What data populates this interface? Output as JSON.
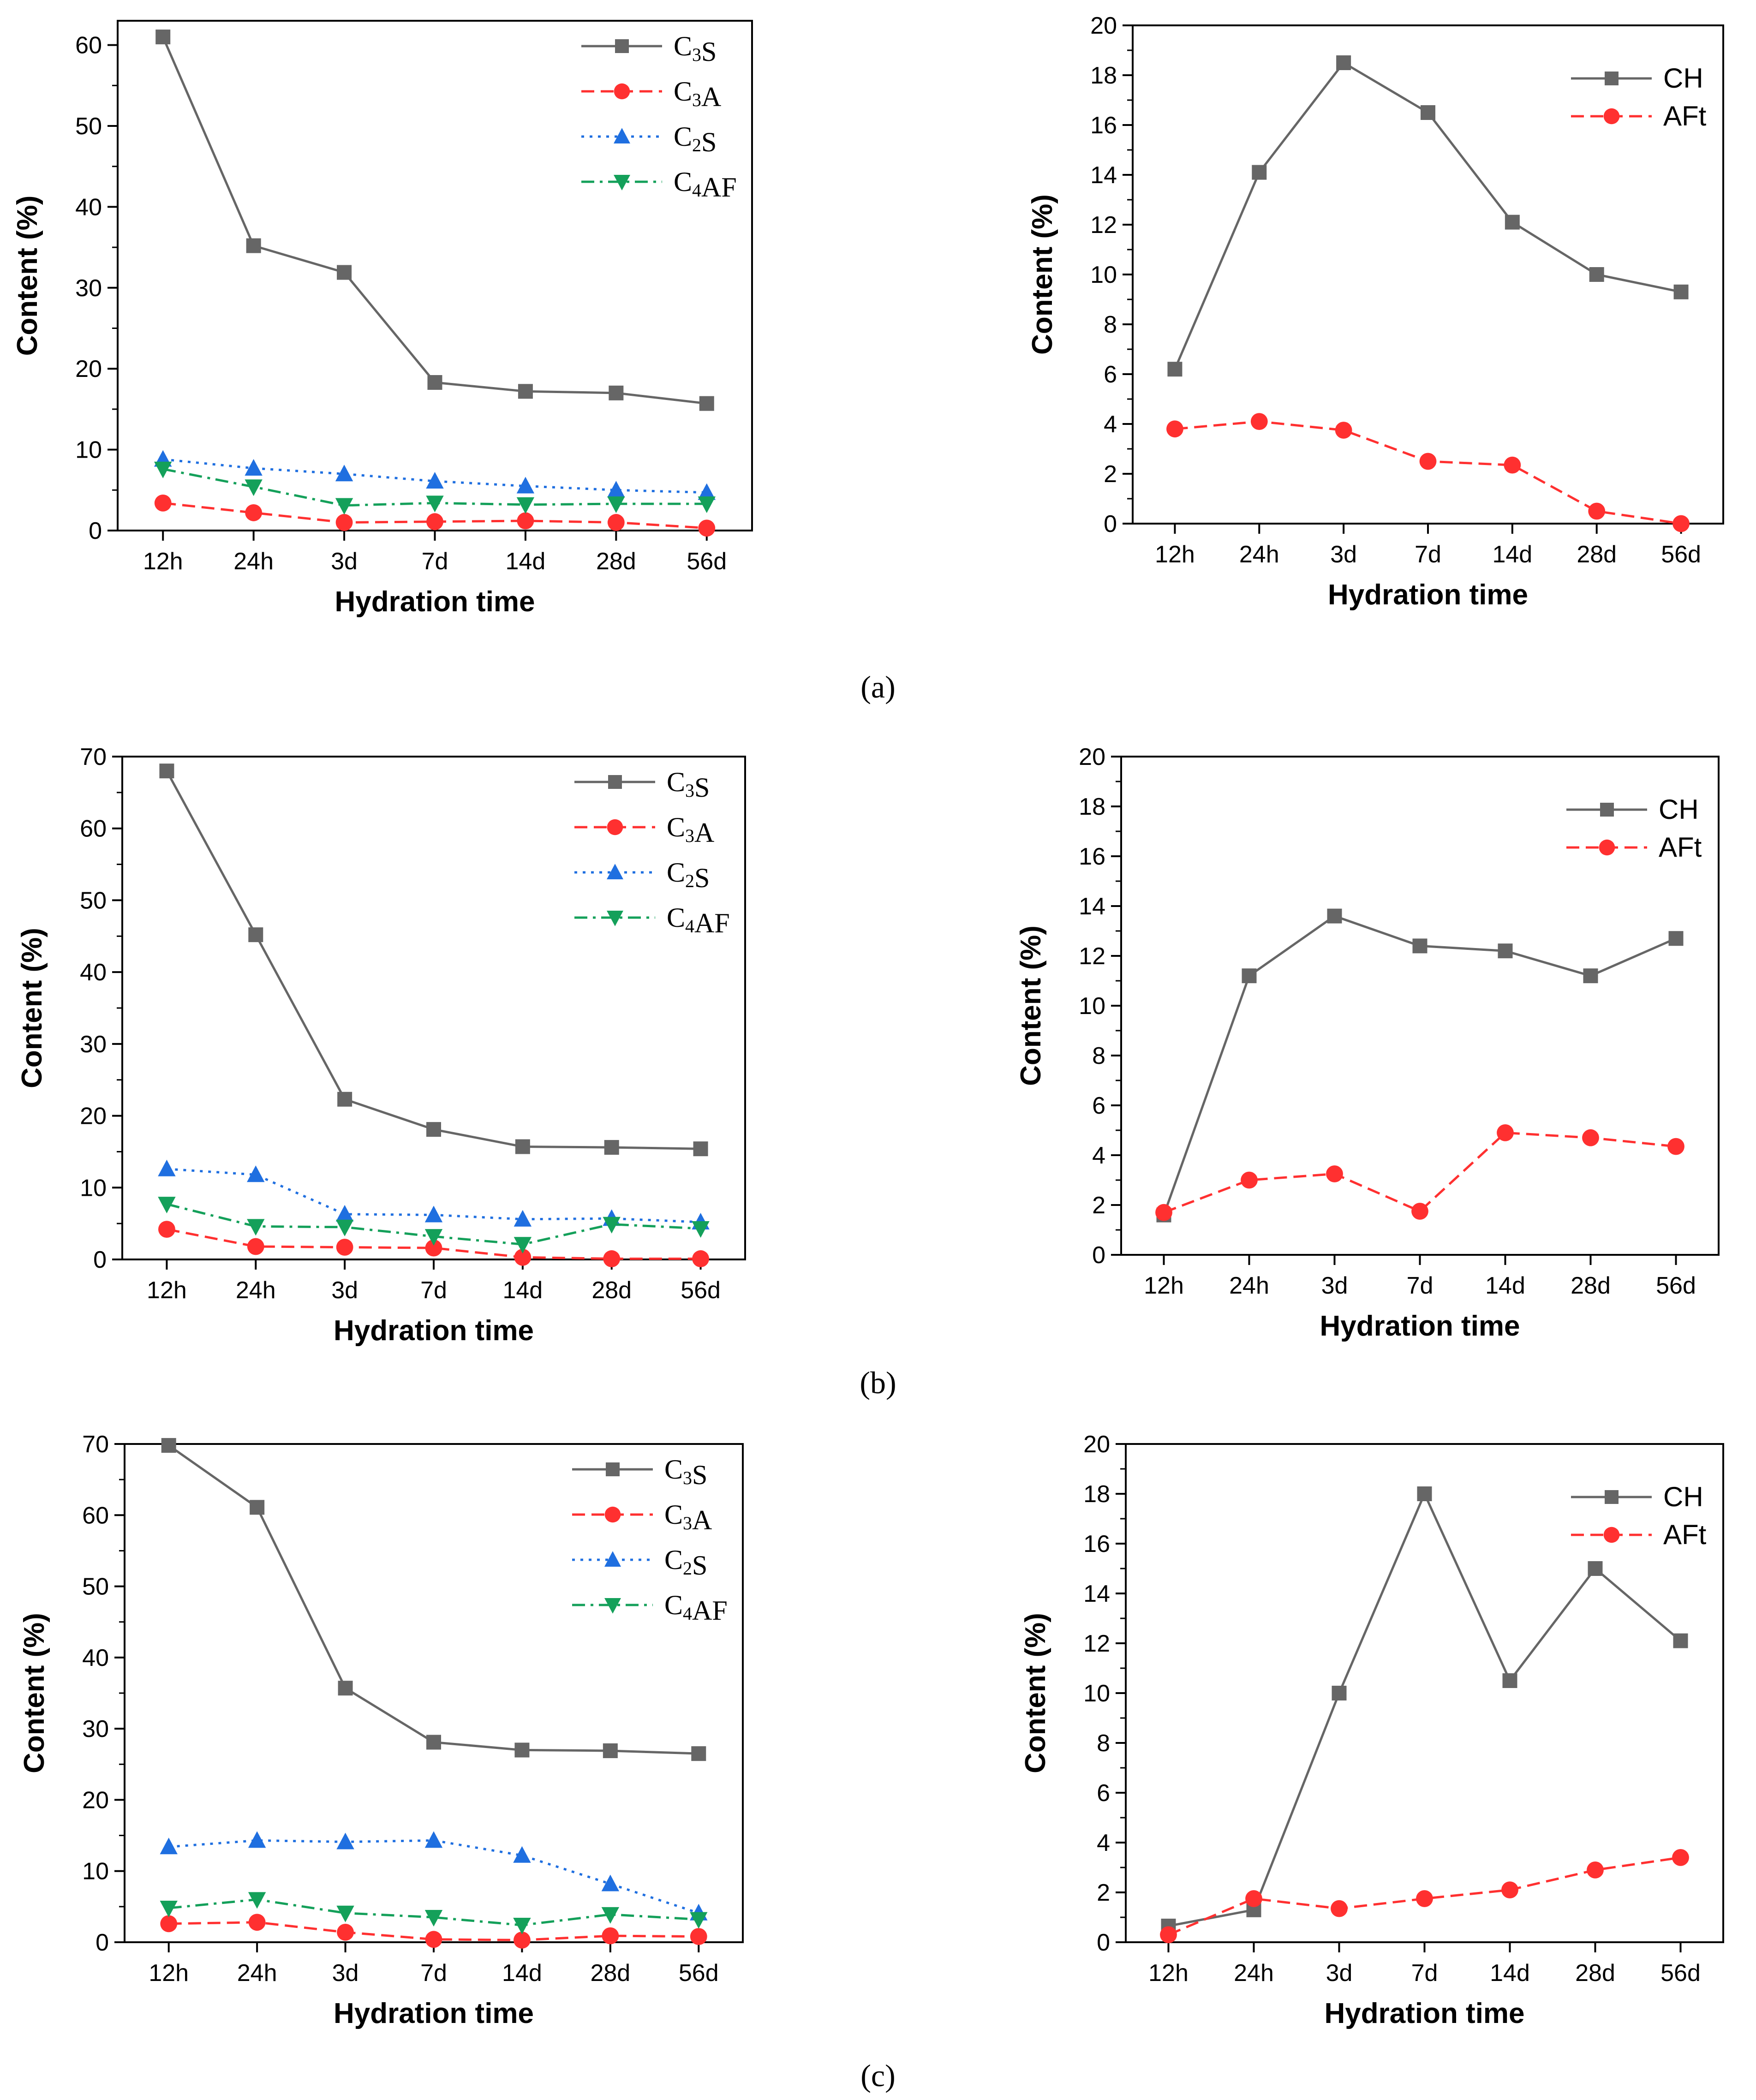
{
  "panel_labels": [
    "(a)",
    "(b)",
    "(c)"
  ],
  "series_styles": {
    "C3S": {
      "color": "#666666",
      "marker": "square",
      "dash": "solid"
    },
    "C3A": {
      "color": "#ff3030",
      "marker": "circle",
      "dash": "dash"
    },
    "C2S": {
      "color": "#1f6fe0",
      "marker": "triangle-up",
      "dash": "dot"
    },
    "C4AF": {
      "color": "#14a05a",
      "marker": "triangle-down",
      "dash": "dashdot"
    },
    "CH": {
      "color": "#666666",
      "marker": "square",
      "dash": "solid"
    },
    "AFt": {
      "color": "#ff3030",
      "marker": "circle",
      "dash": "dash"
    }
  },
  "chart_data": [
    {
      "id": "a-left",
      "panel": "(a)",
      "type": "line",
      "categories": [
        "12h",
        "24h",
        "3d",
        "7d",
        "14d",
        "28d",
        "56d"
      ],
      "xlabel": "Hydration time",
      "ylabel": "Content (%)",
      "ylim": [
        0,
        63
      ],
      "yticks": [
        0,
        10,
        20,
        30,
        40,
        50,
        60
      ],
      "minor_y": 5,
      "legend_loc": "top-right",
      "series": [
        {
          "key": "C3S",
          "name": "C3S",
          "values": [
            61,
            35.2,
            31.9,
            18.3,
            17.2,
            17,
            15.7
          ]
        },
        {
          "key": "C3A",
          "name": "C3A",
          "values": [
            3.4,
            2.2,
            1,
            1.1,
            1.2,
            1,
            0.3
          ]
        },
        {
          "key": "C2S",
          "name": "C2S",
          "values": [
            8.8,
            7.7,
            7,
            6.1,
            5.5,
            5,
            4.7
          ]
        },
        {
          "key": "C4AF",
          "name": "C4AF",
          "values": [
            7.6,
            5.4,
            3.1,
            3.4,
            3.2,
            3.3,
            3.3
          ]
        }
      ]
    },
    {
      "id": "a-right",
      "panel": "(a)",
      "type": "line",
      "categories": [
        "12h",
        "24h",
        "3d",
        "7d",
        "14d",
        "28d",
        "56d"
      ],
      "xlabel": "Hydration time",
      "ylabel": "Content (%)",
      "ylim": [
        0,
        20
      ],
      "yticks": [
        0,
        2,
        4,
        6,
        8,
        10,
        12,
        14,
        16,
        18,
        20
      ],
      "minor_y": 1,
      "legend_loc": "top-right",
      "series": [
        {
          "key": "CH",
          "name": "CH",
          "values": [
            6.2,
            14.1,
            18.5,
            16.5,
            12.1,
            10,
            9.3
          ]
        },
        {
          "key": "AFt",
          "name": "AFt",
          "values": [
            3.8,
            4.1,
            3.75,
            2.5,
            2.35,
            0.5,
            0
          ]
        }
      ]
    },
    {
      "id": "b-left",
      "panel": "(b)",
      "type": "line",
      "categories": [
        "12h",
        "24h",
        "3d",
        "7d",
        "14d",
        "28d",
        "56d"
      ],
      "xlabel": "Hydration time",
      "ylabel": "Content (%)",
      "ylim": [
        0,
        70
      ],
      "yticks": [
        0,
        10,
        20,
        30,
        40,
        50,
        60,
        70
      ],
      "minor_y": 5,
      "legend_loc": "top-right",
      "series": [
        {
          "key": "C3S",
          "name": "C3S",
          "values": [
            68,
            45.2,
            22.3,
            18.1,
            15.7,
            15.6,
            15.4
          ]
        },
        {
          "key": "C3A",
          "name": "C3A",
          "values": [
            4.2,
            1.8,
            1.7,
            1.6,
            0.3,
            0.1,
            0.1
          ]
        },
        {
          "key": "C2S",
          "name": "C2S",
          "values": [
            12.6,
            11.8,
            6.3,
            6.2,
            5.6,
            5.7,
            5.2
          ]
        },
        {
          "key": "C4AF",
          "name": "C4AF",
          "values": [
            7.7,
            4.6,
            4.5,
            3.2,
            2.1,
            4.9,
            4.3
          ]
        }
      ]
    },
    {
      "id": "b-right",
      "panel": "(b)",
      "type": "line",
      "categories": [
        "12h",
        "24h",
        "3d",
        "7d",
        "14d",
        "28d",
        "56d"
      ],
      "xlabel": "Hydration time",
      "ylabel": "Content (%)",
      "ylim": [
        0,
        20
      ],
      "yticks": [
        0,
        2,
        4,
        6,
        8,
        10,
        12,
        14,
        16,
        18,
        20
      ],
      "minor_y": 1,
      "legend_loc": "top-right",
      "series": [
        {
          "key": "CH",
          "name": "CH",
          "values": [
            1.6,
            11.2,
            13.6,
            12.4,
            12.2,
            11.2,
            12.7
          ]
        },
        {
          "key": "AFt",
          "name": "AFt",
          "values": [
            1.7,
            3,
            3.25,
            1.75,
            4.9,
            4.7,
            4.35
          ]
        }
      ]
    },
    {
      "id": "c-left",
      "panel": "(c)",
      "type": "line",
      "categories": [
        "12h",
        "24h",
        "3d",
        "7d",
        "14d",
        "28d",
        "56d"
      ],
      "xlabel": "Hydration time",
      "ylabel": "Content (%)",
      "ylim": [
        0,
        70
      ],
      "yticks": [
        0,
        10,
        20,
        30,
        40,
        50,
        60,
        70
      ],
      "minor_y": 5,
      "legend_loc": "top-right",
      "series": [
        {
          "key": "C3S",
          "name": "C3S",
          "values": [
            69.8,
            61.1,
            35.7,
            28.1,
            27,
            26.9,
            26.5
          ]
        },
        {
          "key": "C3A",
          "name": "C3A",
          "values": [
            2.6,
            2.8,
            1.4,
            0.4,
            0.3,
            0.9,
            0.8
          ]
        },
        {
          "key": "C2S",
          "name": "C2S",
          "values": [
            13.4,
            14.3,
            14.1,
            14.3,
            12.2,
            8.2,
            4.1
          ]
        },
        {
          "key": "C4AF",
          "name": "C4AF",
          "values": [
            4.8,
            6,
            4.1,
            3.5,
            2.4,
            3.9,
            3.2
          ]
        }
      ]
    },
    {
      "id": "c-right",
      "panel": "(c)",
      "type": "line",
      "categories": [
        "12h",
        "24h",
        "3d",
        "7d",
        "14d",
        "28d",
        "56d"
      ],
      "xlabel": "Hydration time",
      "ylabel": "Content (%)",
      "ylim": [
        0,
        20
      ],
      "yticks": [
        0,
        2,
        4,
        6,
        8,
        10,
        12,
        14,
        16,
        18,
        20
      ],
      "minor_y": 1,
      "legend_loc": "top-right",
      "series": [
        {
          "key": "CH",
          "name": "CH",
          "values": [
            0.65,
            1.3,
            10,
            18,
            10.5,
            15,
            12.1
          ]
        },
        {
          "key": "AFt",
          "name": "AFt",
          "values": [
            0.3,
            1.75,
            1.35,
            1.75,
            2.1,
            2.9,
            3.4
          ]
        }
      ]
    }
  ]
}
